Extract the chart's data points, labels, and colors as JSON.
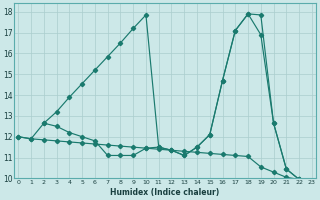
{
  "xlabel": "Humidex (Indice chaleur)",
  "bg_color": "#cce8e8",
  "line_color": "#1a7a6e",
  "grid_color": "#aacece",
  "xlim": [
    -0.3,
    23.3
  ],
  "ylim": [
    10,
    18.4
  ],
  "xticks": [
    0,
    1,
    2,
    3,
    4,
    5,
    6,
    7,
    8,
    9,
    10,
    11,
    12,
    13,
    14,
    15,
    16,
    17,
    18,
    19,
    20,
    21,
    22,
    23
  ],
  "yticks": [
    10,
    11,
    12,
    13,
    14,
    15,
    16,
    17,
    18
  ],
  "curve1_x": [
    0,
    1,
    2,
    3,
    4,
    5,
    6,
    7,
    8,
    9,
    10,
    11,
    12,
    13,
    14,
    15,
    16,
    17,
    18,
    19,
    20,
    21,
    22
  ],
  "curve1_y": [
    12.0,
    11.9,
    12.65,
    12.5,
    12.2,
    12.0,
    11.8,
    11.1,
    11.1,
    11.1,
    11.45,
    11.5,
    11.35,
    11.1,
    11.5,
    12.1,
    14.7,
    17.1,
    17.9,
    17.85,
    12.65,
    10.45,
    9.95
  ],
  "curve2_x": [
    2,
    3,
    4,
    5,
    6,
    7,
    8,
    9,
    10,
    11,
    12,
    13,
    14,
    15,
    16,
    17,
    18,
    19,
    20,
    21,
    22
  ],
  "curve2_y": [
    12.65,
    13.2,
    13.9,
    14.55,
    15.2,
    15.85,
    16.5,
    17.2,
    17.85,
    11.5,
    11.35,
    11.1,
    11.5,
    12.1,
    14.7,
    17.1,
    17.9,
    16.9,
    12.65,
    10.45,
    9.95
  ],
  "curve3_x": [
    0,
    1,
    2,
    3,
    4,
    5,
    6,
    7,
    8,
    9,
    10,
    11,
    12,
    13,
    14,
    15,
    16,
    17,
    18,
    19,
    20,
    21,
    22
  ],
  "curve3_y": [
    12.0,
    11.9,
    11.85,
    11.8,
    11.75,
    11.7,
    11.65,
    11.6,
    11.55,
    11.5,
    11.45,
    11.4,
    11.35,
    11.3,
    11.25,
    11.2,
    11.15,
    11.1,
    11.05,
    10.55,
    10.3,
    10.05,
    9.95
  ]
}
